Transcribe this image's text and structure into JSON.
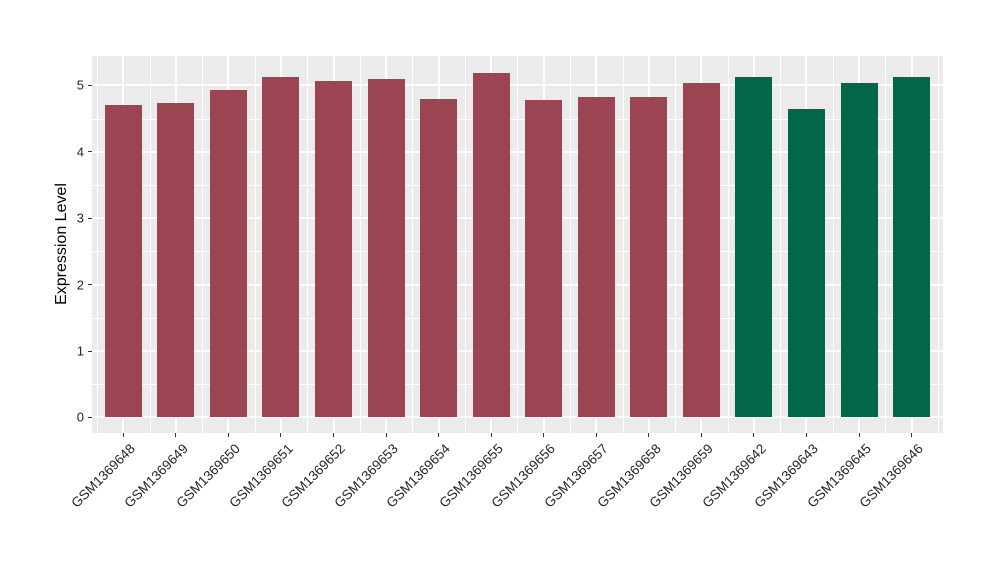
{
  "figure": {
    "background": "#ffffff",
    "panel_background": "#ebebeb",
    "grid_color": "#ffffff",
    "tick_color": "#333333",
    "axis_text_color": "#262626",
    "axis_title_color": "#000000"
  },
  "chart_data": {
    "type": "bar",
    "title": "",
    "xlabel": "",
    "ylabel": "Expression Level",
    "grid": "on",
    "legend": "none",
    "y_ticks": [
      0,
      1,
      2,
      3,
      4,
      5
    ],
    "ylim": [
      -0.23,
      5.43
    ],
    "categories": [
      "GSM1369648",
      "GSM1369649",
      "GSM1369650",
      "GSM1369651",
      "GSM1369652",
      "GSM1369653",
      "GSM1369654",
      "GSM1369655",
      "GSM1369656",
      "GSM1369657",
      "GSM1369658",
      "GSM1369659",
      "GSM1369642",
      "GSM1369643",
      "GSM1369645",
      "GSM1369646"
    ],
    "values": [
      4.71,
      4.73,
      4.93,
      5.13,
      5.06,
      5.1,
      4.8,
      5.18,
      4.78,
      4.83,
      4.83,
      5.04,
      5.13,
      4.64,
      5.04,
      5.13
    ],
    "bar_color_keys": [
      "maroon",
      "maroon",
      "maroon",
      "maroon",
      "maroon",
      "maroon",
      "maroon",
      "maroon",
      "maroon",
      "maroon",
      "maroon",
      "maroon",
      "green",
      "green",
      "green",
      "green"
    ],
    "palette": {
      "maroon": "#9b4452",
      "green": "#026649"
    }
  }
}
